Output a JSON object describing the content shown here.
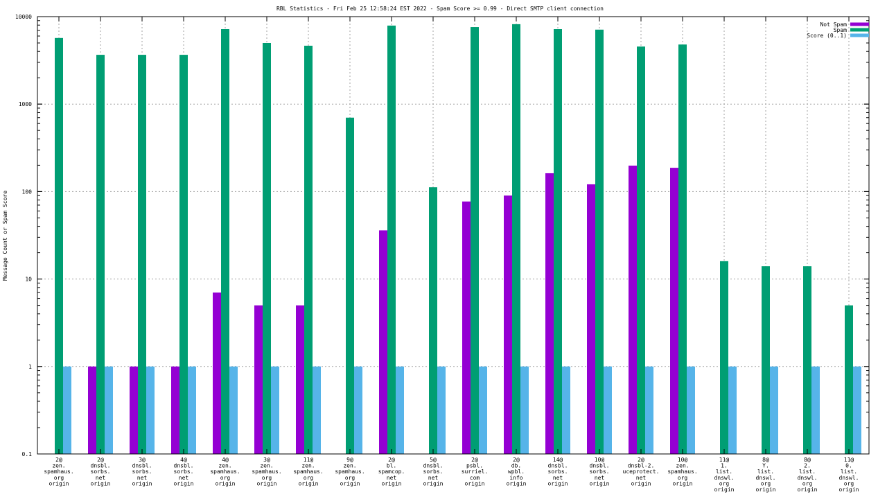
{
  "chart_data": {
    "type": "bar",
    "title": "RBL Statistics - Fri Feb 25 12:58:24 EST 2022 - Spam Score >= 0.99 - Direct SMTP client connection",
    "xlabel": "",
    "ylabel": "Message Count or Spam Score",
    "yscale": "log",
    "ylim": [
      0.1,
      10000
    ],
    "ytick_labels": [
      "0.1",
      "1",
      "10",
      "100",
      "1000",
      "10000"
    ],
    "ytick_values": [
      0.1,
      1,
      10,
      100,
      1000,
      10000
    ],
    "grid": true,
    "legend_position": "top-right",
    "categories": [
      [
        "2@",
        "zen.",
        "spamhaus.",
        "org",
        "origin"
      ],
      [
        "2@",
        "dnsbl.",
        "sorbs.",
        "net",
        "origin"
      ],
      [
        "3@",
        "dnsbl.",
        "sorbs.",
        "net",
        "origin"
      ],
      [
        "4@",
        "dnsbl.",
        "sorbs.",
        "net",
        "origin"
      ],
      [
        "4@",
        "zen.",
        "spamhaus.",
        "org",
        "origin"
      ],
      [
        "3@",
        "zen.",
        "spamhaus.",
        "org",
        "origin"
      ],
      [
        "11@",
        "zen.",
        "spamhaus.",
        "org",
        "origin"
      ],
      [
        "9@",
        "zen.",
        "spamhaus.",
        "org",
        "origin"
      ],
      [
        "2@",
        "bl.",
        "spamcop.",
        "net",
        "origin"
      ],
      [
        "5@",
        "dnsbl.",
        "sorbs.",
        "net",
        "origin"
      ],
      [
        "2@",
        "psbl.",
        "surriel.",
        "com",
        "origin"
      ],
      [
        "2@",
        "db.",
        "wpbl.",
        "info",
        "origin"
      ],
      [
        "14@",
        "dnsbl.",
        "sorbs.",
        "net",
        "origin"
      ],
      [
        "10@",
        "dnsbl.",
        "sorbs.",
        "net",
        "origin"
      ],
      [
        "2@",
        "dnsbl-2.",
        "uceprotect.",
        "net",
        "origin"
      ],
      [
        "10@",
        "zen.",
        "spamhaus.",
        "org",
        "origin"
      ],
      [
        "11@",
        "1.",
        "list.",
        "dnswl.",
        "org",
        "origin"
      ],
      [
        "8@",
        "Y.",
        "list.",
        "dnswl.",
        "org",
        "origin"
      ],
      [
        "8@",
        "2.",
        "list.",
        "dnswl.",
        "org",
        "origin"
      ],
      [
        "11@",
        "0.",
        "list.",
        "dnswl.",
        "org",
        "origin"
      ]
    ],
    "series": [
      {
        "name": "Not Spam",
        "color": "#9400d3",
        "values": [
          null,
          1,
          1,
          1,
          7,
          5,
          5,
          null,
          36,
          null,
          77,
          90,
          162,
          121,
          198,
          187,
          null,
          null,
          null,
          null
        ]
      },
      {
        "name": "Spam",
        "color": "#009e73",
        "values": [
          5700,
          3660,
          3660,
          3660,
          7200,
          5000,
          4650,
          700,
          7900,
          112,
          7600,
          8200,
          7200,
          7100,
          4550,
          4800,
          16,
          14,
          14,
          5
        ]
      },
      {
        "name": "Score (0..1)",
        "color": "#56b4e9",
        "values": [
          1,
          1,
          1,
          1,
          1,
          1,
          1,
          1,
          1,
          1,
          1,
          1,
          1,
          1,
          1,
          1,
          1,
          1,
          1,
          1
        ]
      }
    ]
  }
}
